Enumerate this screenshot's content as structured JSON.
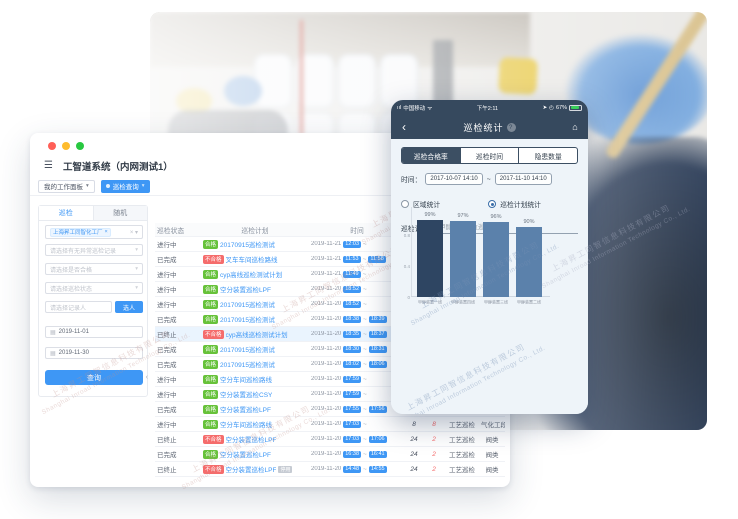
{
  "watermark": {
    "cn": "上海昇工同智信息科技有限公司",
    "en": "Shanghai Inroad Information Technology Co., Ltd."
  },
  "desktop": {
    "window_title": "工智道系统（内网测试1）",
    "workspace_tab": "我的工作面板",
    "active_tab": "巡检查询",
    "sidebar": {
      "tabs": [
        "巡检",
        "随机"
      ],
      "factory_tag": "上海昇工同智化工厂",
      "select_placeholders": [
        "请选择有无异常巡检记录",
        "请选择是否合格",
        "请选择巡检状态"
      ],
      "recorder_placeholder": "请选择记录人",
      "pick_person_button": "选人",
      "date_start": "2019-11-01",
      "date_end": "2019-11-30",
      "search_button": "查询"
    },
    "table": {
      "headers": [
        "巡检状态",
        "巡检计划",
        "时间",
        "漏检",
        "",
        "",
        ""
      ],
      "rows": [
        {
          "status": "进行中",
          "qualified": "合格",
          "plan": "20170915巡检测试",
          "date": "2019-11-21",
          "start": "12:03",
          "end": "",
          "miss": "8",
          "hazard": "",
          "type": "",
          "area": "",
          "highlight": false,
          "tag": ""
        },
        {
          "status": "已完成",
          "qualified": "不合格",
          "plan": "叉车车间巡检路线",
          "date": "2019-11-21",
          "start": "11:53",
          "end": "11:58",
          "miss": "8",
          "hazard": "",
          "type": "",
          "area": "",
          "highlight": false,
          "tag": ""
        },
        {
          "status": "进行中",
          "qualified": "合格",
          "plan": "cyp高线巡检测试计划",
          "date": "2019-11-21",
          "start": "11:49",
          "end": "",
          "miss": "8",
          "hazard": "",
          "type": "",
          "area": "",
          "highlight": false,
          "tag": ""
        },
        {
          "status": "进行中",
          "qualified": "合格",
          "plan": "空分装置巡检LPF",
          "date": "2019-11-20",
          "start": "18:52",
          "end": "",
          "miss": "8",
          "hazard": "",
          "type": "",
          "area": "",
          "highlight": false,
          "tag": ""
        },
        {
          "status": "进行中",
          "qualified": "合格",
          "plan": "20170915巡检测试",
          "date": "2019-11-20",
          "start": "18:52",
          "end": "",
          "miss": "8",
          "hazard": "",
          "type": "",
          "area": "",
          "highlight": false,
          "tag": ""
        },
        {
          "status": "已完成",
          "qualified": "合格",
          "plan": "20170915巡检测试",
          "date": "2019-11-20",
          "start": "18:38",
          "end": "18:39",
          "miss": "21",
          "hazard": "",
          "type": "",
          "area": "",
          "highlight": false,
          "tag": ""
        },
        {
          "status": "已终止",
          "qualified": "不合格",
          "plan": "cyp高线巡检测试计划",
          "date": "2019-11-20",
          "start": "18:35",
          "end": "18:37",
          "miss": "8",
          "hazard": "",
          "type": "",
          "area": "",
          "highlight": true,
          "tag": ""
        },
        {
          "status": "已完成",
          "qualified": "合格",
          "plan": "20170915巡检测试",
          "date": "2019-11-20",
          "start": "18:30",
          "end": "18:31",
          "miss": "21",
          "hazard": "",
          "type": "",
          "area": "",
          "highlight": false,
          "tag": ""
        },
        {
          "status": "已完成",
          "qualified": "合格",
          "plan": "20170915巡检测试",
          "date": "2019-11-20",
          "start": "18:02",
          "end": "18:06",
          "miss": "21",
          "hazard": "",
          "type": "",
          "area": "",
          "highlight": false,
          "tag": ""
        },
        {
          "status": "进行中",
          "qualified": "合格",
          "plan": "空分车间巡检路线",
          "date": "2019-11-20",
          "start": "17:59",
          "end": "",
          "miss": "8",
          "hazard": "",
          "type": "",
          "area": "",
          "highlight": false,
          "tag": ""
        },
        {
          "status": "进行中",
          "qualified": "合格",
          "plan": "空分装置巡检CSY",
          "date": "2019-11-20",
          "start": "17:59",
          "end": "",
          "miss": "8",
          "hazard": "",
          "type": "",
          "area": "",
          "highlight": false,
          "tag": ""
        },
        {
          "status": "已完成",
          "qualified": "合格",
          "plan": "空分装置巡检LPF",
          "date": "2019-11-20",
          "start": "17:55",
          "end": "17:56",
          "miss": "24",
          "hazard": "2",
          "type": "工艺巡检",
          "area": "阀类",
          "highlight": false,
          "tag": ""
        },
        {
          "status": "进行中",
          "qualified": "合格",
          "plan": "空分车间巡检路线",
          "date": "2019-11-20",
          "start": "17:03",
          "end": "",
          "miss": "8",
          "hazard": "8",
          "type": "工艺巡检",
          "area": "气化工段",
          "highlight": false,
          "tag": ""
        },
        {
          "status": "已终止",
          "qualified": "不合格",
          "plan": "空分装置巡检LPF",
          "date": "2019-11-20",
          "start": "17:03",
          "end": "17:06",
          "miss": "24",
          "hazard": "2",
          "type": "工艺巡检",
          "area": "阀类",
          "highlight": false,
          "tag": ""
        },
        {
          "status": "已完成",
          "qualified": "合格",
          "plan": "空分装置巡检LPF",
          "date": "2019-11-20",
          "start": "16:38",
          "end": "16:41",
          "miss": "24",
          "hazard": "2",
          "type": "工艺巡检",
          "area": "阀类",
          "highlight": false,
          "tag": ""
        },
        {
          "status": "已终止",
          "qualified": "不合格",
          "plan": "空分装置巡检LPF",
          "date": "2019-11-20",
          "start": "14:48",
          "end": "14:55",
          "miss": "24",
          "hazard": "2",
          "type": "工艺巡检",
          "area": "阀类",
          "highlight": false,
          "tag": "停用"
        }
      ]
    }
  },
  "phone": {
    "status_bar": {
      "carrier": "中国移动",
      "time": "下午2:11",
      "battery": "67%"
    },
    "nav": {
      "title": "巡检统计",
      "help_icon": "?",
      "back_icon": "‹",
      "home_icon": "⌂"
    },
    "segments": [
      "巡检合格率",
      "巡检时间",
      "隐患数量"
    ],
    "active_segment": 0,
    "time_label": "时间：",
    "time_from": "2017-10-07 14:10",
    "time_separator": "~",
    "time_to": "2017-11-10 14:10",
    "radio_area_label": "区域统计",
    "radio_plan_label": "巡检计划统计",
    "radio_selected": "巡检计划统计",
    "plan_label": "巡检计划：",
    "plan_value": "甲醇合成岗位巡检"
  },
  "chart_data": {
    "type": "bar",
    "title": "",
    "xlabel": "",
    "ylabel": "",
    "categories": [
      "甲醇装置一线",
      "甲醇装置四线",
      "甲醇装置三线",
      "甲醇装置二线"
    ],
    "values": [
      0.99,
      0.97,
      0.96,
      0.9
    ],
    "value_labels": [
      "99%",
      "97%",
      "96%",
      "90%"
    ],
    "ylim": [
      0,
      1
    ],
    "yticks": [
      "0",
      "0.4",
      "0.8"
    ],
    "grid": false,
    "legend": "none",
    "bar_colors": [
      "#2e4562",
      "#5b81ab",
      "#5b81ab",
      "#5b81ab"
    ],
    "highlight_index": 0
  }
}
